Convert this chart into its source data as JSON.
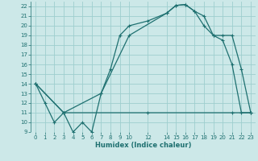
{
  "xlabel": "Humidex (Indice chaleur)",
  "bg_color": "#cce8e8",
  "grid_color": "#9ecece",
  "line_color": "#1e7070",
  "xlim": [
    -0.5,
    23.5
  ],
  "ylim": [
    9,
    22.5
  ],
  "xticks": [
    0,
    1,
    2,
    3,
    4,
    5,
    6,
    7,
    8,
    9,
    10,
    12,
    14,
    15,
    16,
    17,
    18,
    19,
    20,
    21,
    22,
    23
  ],
  "yticks": [
    9,
    10,
    11,
    12,
    13,
    14,
    15,
    16,
    17,
    18,
    19,
    20,
    21,
    22
  ],
  "line1_x": [
    0,
    1,
    2,
    3,
    4,
    5,
    6,
    7,
    8,
    9,
    10,
    12,
    14,
    15,
    16,
    17,
    18,
    19,
    20,
    21,
    22,
    23
  ],
  "line1_y": [
    14,
    12,
    10,
    11,
    9,
    10,
    9,
    13,
    15.5,
    19,
    20,
    20.5,
    21.3,
    22.1,
    22.2,
    21.5,
    21,
    19,
    18.5,
    16,
    11,
    11
  ],
  "line2_x": [
    0,
    3,
    7,
    10,
    14,
    15,
    16,
    17,
    18,
    19,
    20,
    21,
    22,
    23
  ],
  "line2_y": [
    14,
    11,
    13,
    19,
    21.3,
    22.1,
    22.2,
    21.5,
    20,
    19,
    19,
    19,
    15.5,
    11
  ],
  "line3_x": [
    0,
    3,
    12,
    21,
    23
  ],
  "line3_y": [
    14,
    11,
    11,
    11,
    11
  ]
}
